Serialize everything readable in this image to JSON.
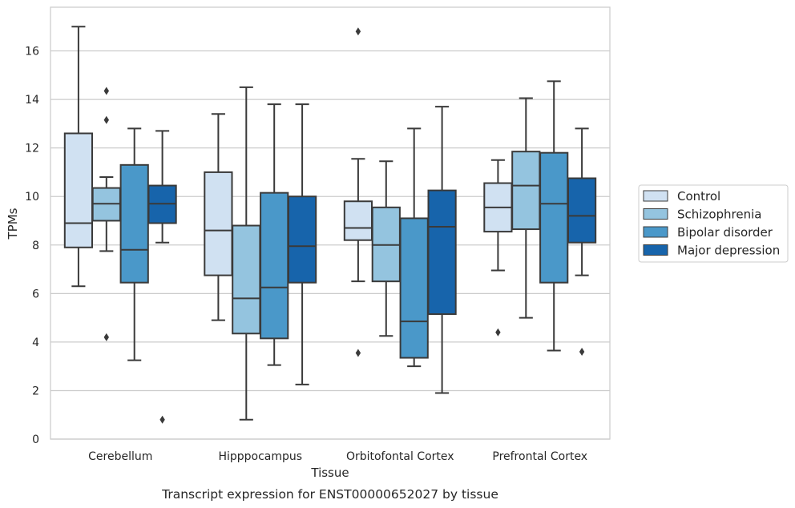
{
  "chart_data": {
    "type": "box",
    "title": "",
    "caption": "Transcript expression for ENST00000652027 by tissue",
    "xlabel": "Tissue",
    "ylabel": "TPMs",
    "ylim": [
      0,
      17.8
    ],
    "yticks": [
      0,
      2,
      4,
      6,
      8,
      10,
      12,
      14,
      16
    ],
    "grid": "horizontal",
    "legend_position": "right",
    "categories": [
      "Cerebellum",
      "Hipppocampus",
      "Orbitofontal Cortex",
      "Prefrontal Cortex"
    ],
    "series": [
      {
        "name": "Control",
        "color": "#d0e1f2",
        "boxes": [
          {
            "whislo": 6.3,
            "q1": 7.9,
            "med": 8.9,
            "q3": 12.6,
            "whishi": 17.0,
            "fliers": []
          },
          {
            "whislo": 4.9,
            "q1": 6.75,
            "med": 8.6,
            "q3": 11.0,
            "whishi": 13.4,
            "fliers": []
          },
          {
            "whislo": 6.5,
            "q1": 8.2,
            "med": 8.7,
            "q3": 9.8,
            "whishi": 11.55,
            "fliers": [
              16.8,
              3.55
            ]
          },
          {
            "whislo": 6.95,
            "q1": 8.55,
            "med": 9.55,
            "q3": 10.55,
            "whishi": 11.5,
            "fliers": [
              4.4
            ]
          }
        ]
      },
      {
        "name": "Schizophrenia",
        "color": "#94c4df",
        "boxes": [
          {
            "whislo": 7.75,
            "q1": 9.0,
            "med": 9.7,
            "q3": 10.35,
            "whishi": 10.8,
            "fliers": [
              14.35,
              13.15,
              4.2
            ]
          },
          {
            "whislo": 0.8,
            "q1": 4.35,
            "med": 5.8,
            "q3": 8.8,
            "whishi": 14.5,
            "fliers": []
          },
          {
            "whislo": 4.25,
            "q1": 6.5,
            "med": 8.0,
            "q3": 9.55,
            "whishi": 11.45,
            "fliers": []
          },
          {
            "whislo": 5.0,
            "q1": 8.65,
            "med": 10.45,
            "q3": 11.85,
            "whishi": 14.05,
            "fliers": []
          }
        ]
      },
      {
        "name": "Bipolar disorder",
        "color": "#4a98c9",
        "boxes": [
          {
            "whislo": 3.25,
            "q1": 6.45,
            "med": 7.8,
            "q3": 11.3,
            "whishi": 12.8,
            "fliers": []
          },
          {
            "whislo": 3.05,
            "q1": 4.15,
            "med": 6.25,
            "q3": 10.15,
            "whishi": 13.8,
            "fliers": []
          },
          {
            "whislo": 3.0,
            "q1": 3.35,
            "med": 4.85,
            "q3": 9.1,
            "whishi": 12.8,
            "fliers": []
          },
          {
            "whislo": 3.65,
            "q1": 6.45,
            "med": 9.7,
            "q3": 11.8,
            "whishi": 14.75,
            "fliers": []
          }
        ]
      },
      {
        "name": "Major depression",
        "color": "#1764ab",
        "boxes": [
          {
            "whislo": 8.1,
            "q1": 8.9,
            "med": 9.7,
            "q3": 10.45,
            "whishi": 12.7,
            "fliers": [
              0.8
            ]
          },
          {
            "whislo": 2.25,
            "q1": 6.45,
            "med": 7.95,
            "q3": 10.0,
            "whishi": 13.8,
            "fliers": []
          },
          {
            "whislo": 1.9,
            "q1": 5.15,
            "med": 8.75,
            "q3": 10.25,
            "whishi": 13.7,
            "fliers": []
          },
          {
            "whislo": 6.75,
            "q1": 8.1,
            "med": 9.2,
            "q3": 10.75,
            "whishi": 12.8,
            "fliers": [
              3.6
            ]
          }
        ]
      }
    ]
  },
  "style": {
    "line_color": "#3a3a3a",
    "grid_color": "#cccccc",
    "frame_color": "#cccccc",
    "text_color": "#262626"
  }
}
